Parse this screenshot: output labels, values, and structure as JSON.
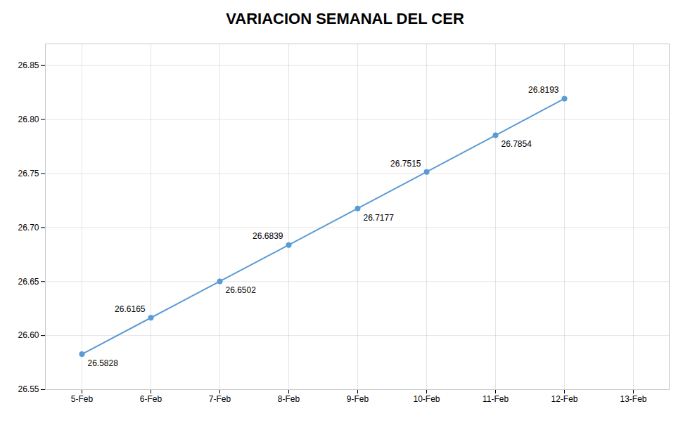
{
  "chart_data": {
    "type": "line",
    "title": "VARIACION SEMANAL DEL CER",
    "categories": [
      "5-Feb",
      "6-Feb",
      "7-Feb",
      "8-Feb",
      "9-Feb",
      "10-Feb",
      "11-Feb",
      "12-Feb",
      "13-Feb"
    ],
    "values": [
      26.5828,
      26.6165,
      26.6502,
      26.6839,
      26.7177,
      26.7515,
      26.7854,
      26.8193,
      null
    ],
    "color": "#5B9BD5",
    "marker": "circle",
    "ylim": [
      26.55,
      26.87
    ],
    "yticks": [
      26.55,
      {
        "value": 26.6,
        "label": "26.60"
      },
      26.65,
      {
        "value": 26.7,
        "label": "26.70"
      },
      26.75,
      {
        "value": 26.8,
        "label": "26.80"
      },
      26.85
    ],
    "grid": true,
    "data_labels": true
  }
}
